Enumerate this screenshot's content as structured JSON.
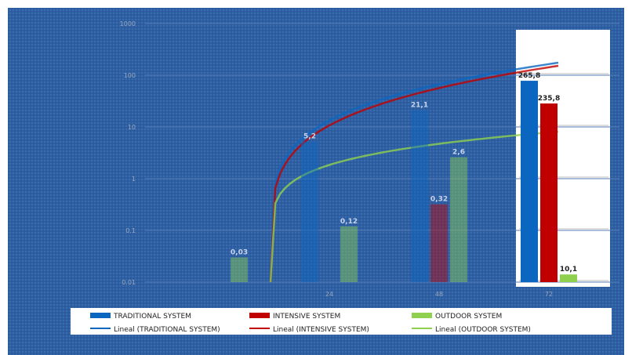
{
  "chart_data": {
    "type": "bar",
    "y_scale": "log",
    "ylim": [
      0.01,
      1000
    ],
    "y_ticks": [
      "1000",
      "100",
      "10",
      "1",
      "0.1",
      "0.01"
    ],
    "ylabel": "",
    "y_unit": "",
    "categories": [
      "",
      "24",
      "48",
      "72"
    ],
    "series": [
      {
        "name": "TRADITIONAL SYSTEM",
        "color": "#0b66c0",
        "values": [
          null,
          5.2,
          21.1,
          265.8
        ],
        "labels": [
          "",
          "5,2",
          "21,1",
          "265,8"
        ]
      },
      {
        "name": "INTENSIVE SYSTEM",
        "color": "#c00000",
        "values": [
          null,
          null,
          0.32,
          235.8
        ],
        "labels": [
          "",
          "",
          "0,32",
          "235,8"
        ]
      },
      {
        "name": "OUTDOOR SYSTEM",
        "color": "#8fd14f",
        "values": [
          0.03,
          0.12,
          2.6,
          10.1
        ],
        "labels": [
          "0,03",
          "0,12",
          "2,6",
          "10,1"
        ]
      }
    ],
    "trendlines": [
      {
        "name": "Lineal (TRADITIONAL SYSTEM)",
        "color": "#0b66c0"
      },
      {
        "name": "Lineal (INTENSIVE SYSTEM)",
        "color": "#c00000"
      },
      {
        "name": "Lineal (OUTDOOR SYSTEM)",
        "color": "#8fd14f"
      }
    ],
    "grid": true,
    "legend_position": "bottom"
  }
}
